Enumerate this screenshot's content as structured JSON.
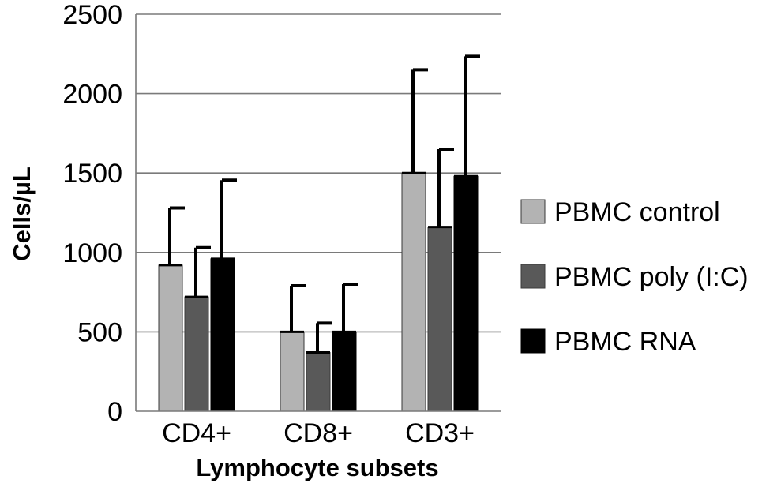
{
  "chart_data": {
    "type": "bar",
    "title": "",
    "xlabel": "Lymphocyte subsets",
    "ylabel": "Cells/µL",
    "ylim": [
      0,
      2500
    ],
    "yticks": [
      "0",
      "500",
      "1000",
      "1500",
      "2000",
      "2500"
    ],
    "categories": [
      "CD4+",
      "CD8+",
      "CD3+"
    ],
    "series": [
      {
        "name": "PBMC control",
        "color": "#b3b3b3",
        "values": [
          920,
          500,
          1500
        ],
        "error_upper": [
          1280,
          790,
          2150
        ]
      },
      {
        "name": "PBMC poly (I:C)",
        "color": "#595959",
        "values": [
          720,
          370,
          1160
        ],
        "error_upper": [
          1030,
          555,
          1650
        ]
      },
      {
        "name": "PBMC RNA",
        "color": "#000000",
        "values": [
          960,
          500,
          1480
        ],
        "error_upper": [
          1455,
          800,
          2235
        ]
      }
    ],
    "grid": true,
    "legend_position": "right"
  }
}
